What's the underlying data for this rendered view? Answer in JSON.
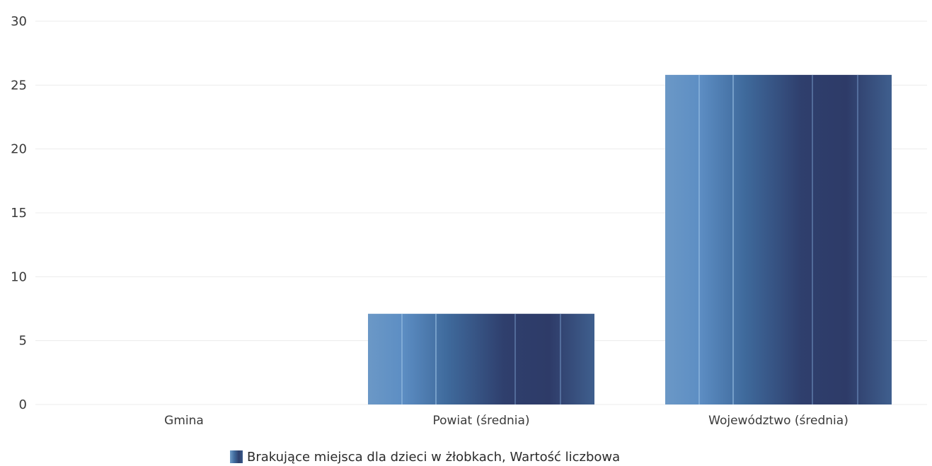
{
  "chart_data": {
    "type": "bar",
    "categories": [
      "Gmina",
      "Powiat (średnia)",
      "Województwo (średnia)"
    ],
    "series": [
      {
        "name": "Brakujące miejsca dla dzieci w żłobkach, Wartość liczbowa",
        "values": [
          0,
          7.1,
          25.8
        ],
        "color": "#35507f"
      }
    ],
    "y_ticks": [
      "0",
      "5",
      "10",
      "15",
      "20",
      "25",
      "30"
    ],
    "ylim": [
      0,
      30
    ],
    "grid": true,
    "legend_position": "bottom-center",
    "title": "",
    "xlabel": "",
    "ylabel": ""
  }
}
